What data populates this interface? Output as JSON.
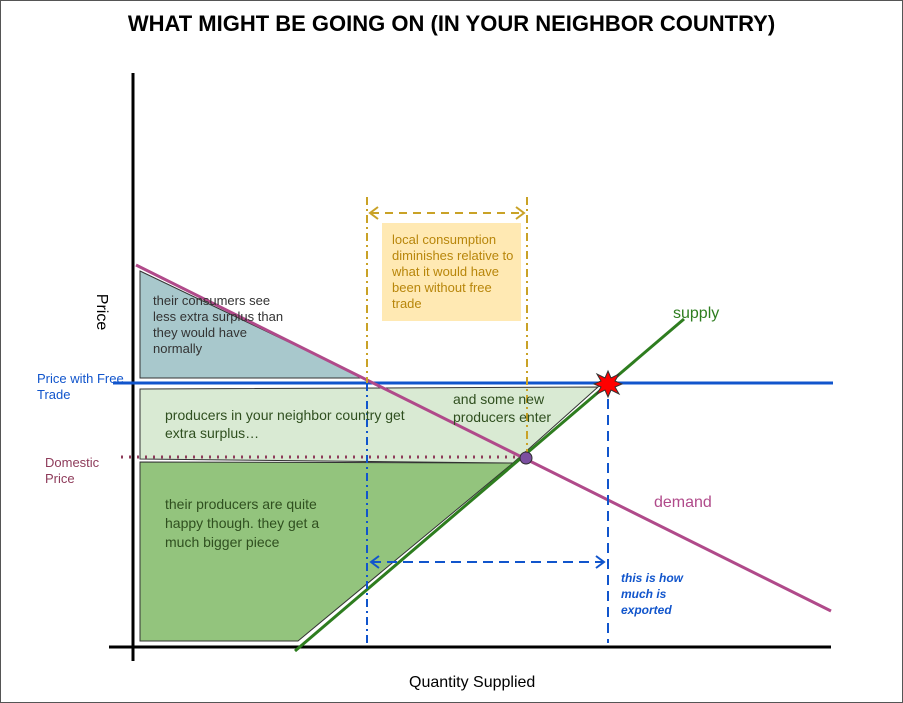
{
  "title": "WHAT MIGHT BE GOING ON (IN YOUR NEIGHBOR COUNTRY)",
  "axes": {
    "x_label": "Quantity Supplied",
    "y_label": "Price"
  },
  "price_labels": {
    "free_trade": "Price with Free Trade",
    "domestic": "Domestic Price"
  },
  "curves": {
    "supply_label": "supply",
    "demand_label": "demand"
  },
  "annotations": {
    "consumers": "their consumers see less extra surplus than they would have normally",
    "producers_extra": "producers in your neighbor country get extra surplus…",
    "new_producers": "and some new producers enter",
    "producers_happy": "their producers are quite happy though. they get a much bigger piece",
    "local_consumption": "local consumption diminishes relative to what it would have been without free trade",
    "exported": "this is how much is exported"
  },
  "colors": {
    "supply": "#2e7d1f",
    "demand": "#b04a8a",
    "free_trade_price": "#1155cc",
    "domestic_price": "#8e3b5a",
    "consumer_surplus_fill": "#a8c8cc",
    "producer_surplus_fill": "#93c47d",
    "extra_producer_fill": "#d9ead3",
    "local_consumption_note": "#ffe9b3",
    "consumption_bracket": "#c9a227",
    "equilibrium_marker": "#7b4fa0",
    "trade_point_marker": "#ff0000"
  }
}
